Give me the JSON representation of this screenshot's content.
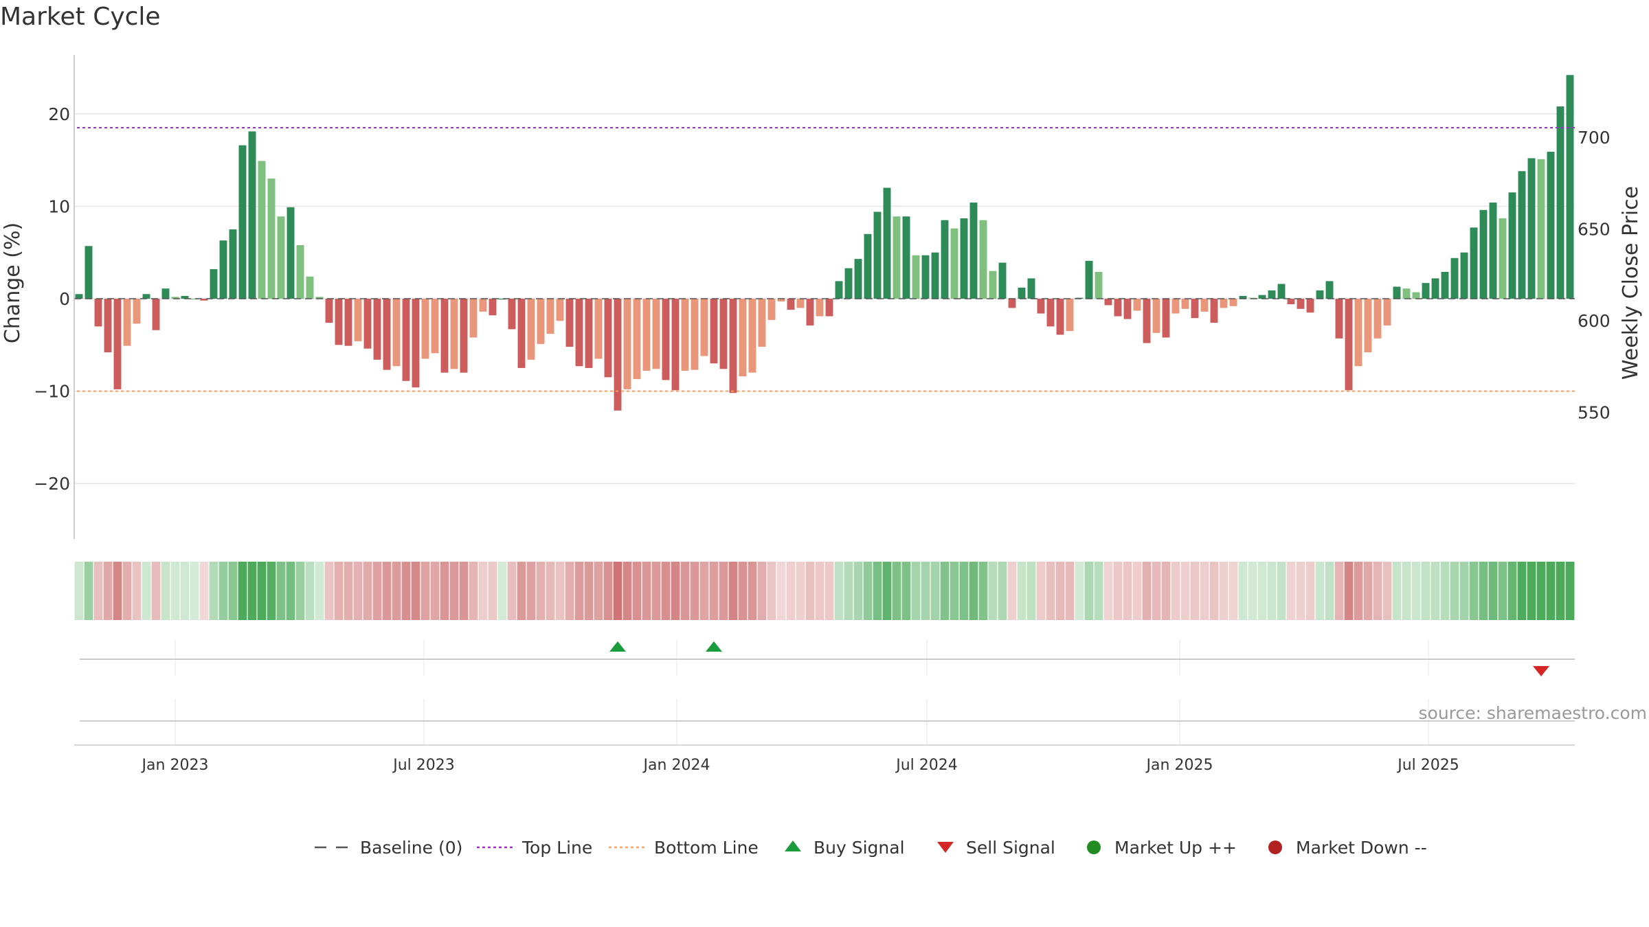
{
  "title": "Market Cycle",
  "source": "source: sharemaestro.com",
  "colors": {
    "up_strong": "#2e8b57",
    "up_light": "#7fc07f",
    "down_strong": "#cd5c5c",
    "down_light": "#e9967a",
    "top_line": "#9932cc",
    "bottom_line": "#f4a460",
    "buy": "#1a9c3c",
    "sell": "#d62728",
    "market_up": "#228b22",
    "market_down": "#b22222",
    "baseline": "#555555",
    "grid": "#e6e6e6"
  },
  "legend": [
    {
      "label": "Baseline (0)",
      "symbol": "dash",
      "color": "#555555"
    },
    {
      "label": "Top Line",
      "symbol": "dot-purple",
      "color": "#9932cc"
    },
    {
      "label": "Bottom Line",
      "symbol": "dot-orange",
      "color": "#f4a460"
    },
    {
      "label": "Buy Signal",
      "symbol": "triangle-up",
      "color": "#1a9c3c"
    },
    {
      "label": "Sell Signal",
      "symbol": "triangle-down",
      "color": "#d62728"
    },
    {
      "label": "Market Up ++",
      "symbol": "circle",
      "color": "#228b22"
    },
    {
      "label": "Market Down --",
      "symbol": "circle",
      "color": "#b22222"
    }
  ],
  "chart_data": {
    "type": "bar",
    "title": "Market Cycle",
    "ylabel": "Change (%)",
    "y2label": "Weekly Close Price",
    "ylim": [
      -26,
      26
    ],
    "yticks": [
      {
        "value": 20,
        "label": "20"
      },
      {
        "value": 10,
        "label": "10"
      },
      {
        "value": 0,
        "label": "0"
      },
      {
        "value": -10,
        "label": "−10"
      },
      {
        "value": -20,
        "label": "−20"
      }
    ],
    "y2ticks": [
      {
        "value": 700,
        "label": "700"
      },
      {
        "value": 650,
        "label": "650"
      },
      {
        "value": 600,
        "label": "600"
      },
      {
        "value": 550,
        "label": "550"
      }
    ],
    "y2lim": [
      481,
      745
    ],
    "top_line": 18.5,
    "bottom_line": -10,
    "baseline": 0,
    "x_start": "2022-10-23",
    "week_step": 1,
    "xticks": [
      {
        "date": "2023-01-01",
        "label": "Jan 2023"
      },
      {
        "date": "2023-07-01",
        "label": "Jul 2023"
      },
      {
        "date": "2024-01-01",
        "label": "Jan 2024"
      },
      {
        "date": "2024-07-01",
        "label": "Jul 2024"
      },
      {
        "date": "2025-01-01",
        "label": "Jan 2025"
      },
      {
        "date": "2025-07-01",
        "label": "Jul 2025"
      }
    ],
    "values": [
      0.5,
      5.7,
      -3,
      -5.8,
      -9.8,
      -5.1,
      -2.7,
      0.5,
      -3.4,
      1.1,
      0.2,
      0.3,
      0,
      -0.2,
      3.2,
      6.3,
      7.5,
      16.6,
      18.1,
      14.9,
      13,
      8.9,
      9.9,
      5.8,
      2.4,
      0.2,
      -2.6,
      -5,
      -5.1,
      -4.6,
      -5.4,
      -6.6,
      -7.7,
      -7.3,
      -8.9,
      -9.6,
      -6.5,
      -5.9,
      -8,
      -7.6,
      -8,
      -4.2,
      -1.4,
      -1.8,
      0,
      -3.3,
      -7.5,
      -6.6,
      -4.9,
      -3.8,
      -2.4,
      -5.2,
      -7.3,
      -7.5,
      -6.5,
      -8.5,
      -12.1,
      -9.8,
      -8.7,
      -7.8,
      -7.6,
      -8.8,
      -9.9,
      -7.8,
      -7.7,
      -6.2,
      -7,
      -7.6,
      -10.2,
      -8.4,
      -8,
      -5.2,
      -2.3,
      -0.3,
      -1.2,
      -1,
      -2.9,
      -1.9,
      -1.9,
      1.9,
      3.3,
      4.3,
      7,
      9.4,
      12,
      8.9,
      8.9,
      4.7,
      4.7,
      5,
      8.5,
      7.6,
      8.7,
      10.4,
      8.5,
      3,
      3.9,
      -1,
      1.2,
      2.2,
      -1.6,
      -3,
      -3.9,
      -3.5,
      0.1,
      4.1,
      2.9,
      -0.7,
      -1.9,
      -2.2,
      -1.3,
      -4.8,
      -3.7,
      -4.2,
      -1.6,
      -1.1,
      -2.1,
      -1.4,
      -2.6,
      -1,
      -0.8,
      0.3,
      0.1,
      0.4,
      0.9,
      1.6,
      -0.6,
      -1.1,
      -1.5,
      0.9,
      1.9,
      -4.3,
      -9.9,
      -7.3,
      -5.8,
      -4.3,
      -2.9,
      1.3,
      1.1,
      0.7,
      1.7,
      2.2,
      2.9,
      4.4,
      5,
      7.7,
      9.6,
      10.4,
      8.7,
      11.5,
      13.8,
      15.2,
      15.1,
      15.9,
      20.8,
      24.2
    ],
    "heat_strip": [
      0.5,
      5.7,
      -3,
      -5.8,
      -9.8,
      -5.1,
      -2.7,
      0.5,
      -3.4,
      1.1,
      0.2,
      0.3,
      0,
      -0.2,
      3.2,
      6.3,
      7.5,
      16.6,
      18.1,
      14.9,
      13,
      8.9,
      9.9,
      5.8,
      2.4,
      0.2,
      -2.6,
      -5,
      -5.1,
      -4.6,
      -5.4,
      -6.6,
      -7.7,
      -7.3,
      -8.9,
      -9.6,
      -6.5,
      -5.9,
      -8,
      -7.6,
      -8,
      -4.2,
      -1.4,
      -1.8,
      0,
      -3.3,
      -7.5,
      -6.6,
      -4.9,
      -3.8,
      -2.4,
      -5.2,
      -7.3,
      -7.5,
      -6.5,
      -8.5,
      -12.1,
      -9.8,
      -8.7,
      -7.8,
      -7.6,
      -8.8,
      -9.9,
      -7.8,
      -7.7,
      -6.2,
      -7,
      -7.6,
      -10.2,
      -8.4,
      -8,
      -5.2,
      -2.3,
      -0.3,
      -1.2,
      -1,
      -2.9,
      -1.9,
      -1.9,
      1.9,
      3.3,
      4.3,
      7,
      9.4,
      12,
      8.9,
      8.9,
      4.7,
      4.7,
      5,
      8.5,
      7.6,
      8.7,
      10.4,
      8.5,
      3,
      3.9,
      -1,
      1.2,
      2.2,
      -1.6,
      -3,
      -3.9,
      -3.5,
      0.1,
      4.1,
      2.9,
      -0.7,
      -1.9,
      -2.2,
      -1.3,
      -4.8,
      -3.7,
      -4.2,
      -1.6,
      -1.1,
      -2.1,
      -1.4,
      -2.6,
      -1,
      -0.8,
      0.3,
      0.1,
      0.4,
      0.9,
      1.6,
      -0.6,
      -1.1,
      -1.5,
      0.9,
      1.9,
      -4.3,
      -9.9,
      -7.3,
      -5.8,
      -4.3,
      -2.9,
      1.3,
      1.1,
      0.7,
      1.7,
      2.2,
      2.9,
      4.4,
      5,
      7.7,
      9.6,
      10.4,
      8.7,
      11.5,
      13.8,
      15.2,
      15.1,
      15.9,
      20.8,
      24.2
    ],
    "buy_signals": [
      "2023-11-19",
      "2024-01-28"
    ],
    "sell_signals": [
      "2025-09-21"
    ]
  }
}
